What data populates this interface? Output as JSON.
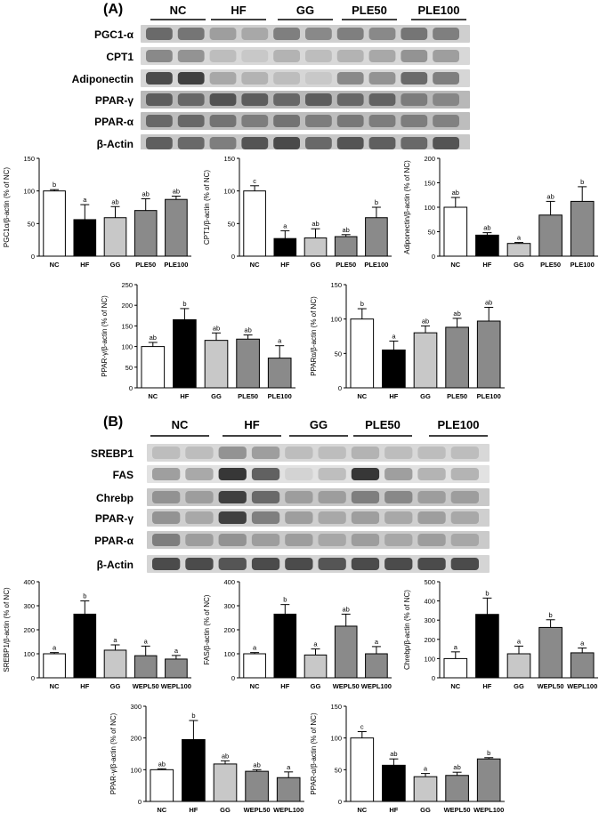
{
  "panel_a": {
    "label": "(A)",
    "lanes": [
      "NC",
      "HF",
      "GG",
      "PLE50",
      "PLE100"
    ],
    "proteins": [
      "PGC1-α",
      "CPT1",
      "Adiponectin",
      "PPAR-γ",
      "PPAR-α",
      "β-Actin"
    ]
  },
  "panel_b": {
    "label": "(B)",
    "lanes": [
      "NC",
      "HF",
      "GG",
      "PLE50",
      "PLE100"
    ],
    "proteins": [
      "SREBP1",
      "FAS",
      "Chrebp",
      "PPAR-γ",
      "PPAR-α",
      "β-Actin"
    ]
  },
  "colors": {
    "NC": "#ffffff",
    "HF": "#000000",
    "GG": "#c8c8c8",
    "group4": "#8a8a8a",
    "group5": "#8a8a8a"
  },
  "chart_data": [
    {
      "type": "bar",
      "ylabel": "PGC1α/β-actin (% of NC)",
      "categories": [
        "NC",
        "HF",
        "GG",
        "PLE50",
        "PLE100"
      ],
      "values": [
        100,
        56,
        59,
        70,
        87
      ],
      "errors": [
        2,
        23,
        17,
        18,
        5
      ],
      "letters": [
        "b",
        "a",
        "ab",
        "ab",
        "ab"
      ],
      "ylim": [
        0,
        150
      ],
      "yticks": [
        0,
        50,
        100,
        150
      ]
    },
    {
      "type": "bar",
      "ylabel": "CPT1/β-actin (% of NC)",
      "categories": [
        "NC",
        "HF",
        "GG",
        "PLE50",
        "PLE100"
      ],
      "values": [
        100,
        27,
        28,
        30,
        59
      ],
      "errors": [
        8,
        12,
        14,
        3,
        16
      ],
      "letters": [
        "c",
        "a",
        "ab",
        "ab",
        "b"
      ],
      "ylim": [
        0,
        150
      ],
      "yticks": [
        0,
        50,
        100,
        150
      ]
    },
    {
      "type": "bar",
      "ylabel": "Adiponectin/β-actin (% of NC)",
      "categories": [
        "NC",
        "HF",
        "GG",
        "PLE50",
        "PLE100"
      ],
      "values": [
        100,
        43,
        26,
        84,
        112
      ],
      "errors": [
        20,
        5,
        2,
        28,
        30
      ],
      "letters": [
        "ab",
        "ab",
        "a",
        "ab",
        "b"
      ],
      "ylim": [
        0,
        200
      ],
      "yticks": [
        0,
        50,
        100,
        150,
        200
      ]
    },
    {
      "type": "bar",
      "ylabel": "PPAR-γ/β-actin (% of NC)",
      "categories": [
        "NC",
        "HF",
        "GG",
        "PLE50",
        "PLE100"
      ],
      "values": [
        100,
        165,
        115,
        118,
        72
      ],
      "errors": [
        10,
        27,
        18,
        10,
        30
      ],
      "letters": [
        "ab",
        "b",
        "ab",
        "ab",
        "a"
      ],
      "ylim": [
        0,
        250
      ],
      "yticks": [
        0,
        50,
        100,
        150,
        200,
        250
      ]
    },
    {
      "type": "bar",
      "ylabel": "PPARα/β-actin (% of NC)",
      "categories": [
        "NC",
        "HF",
        "GG",
        "PLE50",
        "PLE100"
      ],
      "values": [
        100,
        55,
        80,
        88,
        97
      ],
      "errors": [
        15,
        13,
        10,
        13,
        20
      ],
      "letters": [
        "b",
        "a",
        "ab",
        "ab",
        "ab"
      ],
      "ylim": [
        0,
        150
      ],
      "yticks": [
        0,
        50,
        100,
        150
      ]
    },
    {
      "type": "bar",
      "ylabel": "SREBP1/β-actin (% of NC)",
      "categories": [
        "NC",
        "HF",
        "GG",
        "WEPL50",
        "WEPL100"
      ],
      "values": [
        100,
        265,
        115,
        92,
        78
      ],
      "errors": [
        5,
        55,
        22,
        40,
        15
      ],
      "letters": [
        "a",
        "b",
        "a",
        "a",
        "a"
      ],
      "ylim": [
        0,
        400
      ],
      "yticks": [
        0,
        100,
        200,
        300,
        400
      ]
    },
    {
      "type": "bar",
      "ylabel": "FAS/β-actin (% of NC)",
      "categories": [
        "NC",
        "HF",
        "GG",
        "WEPL50",
        "WEPL100"
      ],
      "values": [
        100,
        265,
        95,
        215,
        100
      ],
      "errors": [
        5,
        40,
        25,
        50,
        30
      ],
      "letters": [
        "a",
        "b",
        "a",
        "ab",
        "a"
      ],
      "ylim": [
        0,
        400
      ],
      "yticks": [
        0,
        100,
        200,
        300,
        400
      ]
    },
    {
      "type": "bar",
      "ylabel": "Chrebp/β-actin (% of NC)",
      "categories": [
        "NC",
        "HF",
        "GG",
        "WEPL50",
        "WEPL100"
      ],
      "values": [
        100,
        330,
        125,
        262,
        130
      ],
      "errors": [
        35,
        85,
        40,
        40,
        25
      ],
      "letters": [
        "a",
        "b",
        "a",
        "b",
        "a"
      ],
      "ylim": [
        0,
        500
      ],
      "yticks": [
        0,
        100,
        200,
        300,
        400,
        500
      ]
    },
    {
      "type": "bar",
      "ylabel": "PPAR-γ/β-actin (% of NC)",
      "categories": [
        "NC",
        "HF",
        "GG",
        "WEPL50",
        "WEPL100"
      ],
      "values": [
        100,
        195,
        118,
        95,
        75
      ],
      "errors": [
        3,
        60,
        10,
        5,
        18
      ],
      "letters": [
        "ab",
        "b",
        "ab",
        "ab",
        "a"
      ],
      "ylim": [
        0,
        300
      ],
      "yticks": [
        0,
        100,
        200,
        300
      ]
    },
    {
      "type": "bar",
      "ylabel": "PPAR-α/β-actin (% of NC)",
      "categories": [
        "NC",
        "HF",
        "GG",
        "WEPL50",
        "WEPL100"
      ],
      "values": [
        100,
        57,
        39,
        41,
        67
      ],
      "errors": [
        10,
        10,
        5,
        5,
        2
      ],
      "letters": [
        "c",
        "ab",
        "a",
        "ab",
        "b"
      ],
      "ylim": [
        0,
        150
      ],
      "yticks": [
        0,
        50,
        100,
        150
      ]
    }
  ]
}
